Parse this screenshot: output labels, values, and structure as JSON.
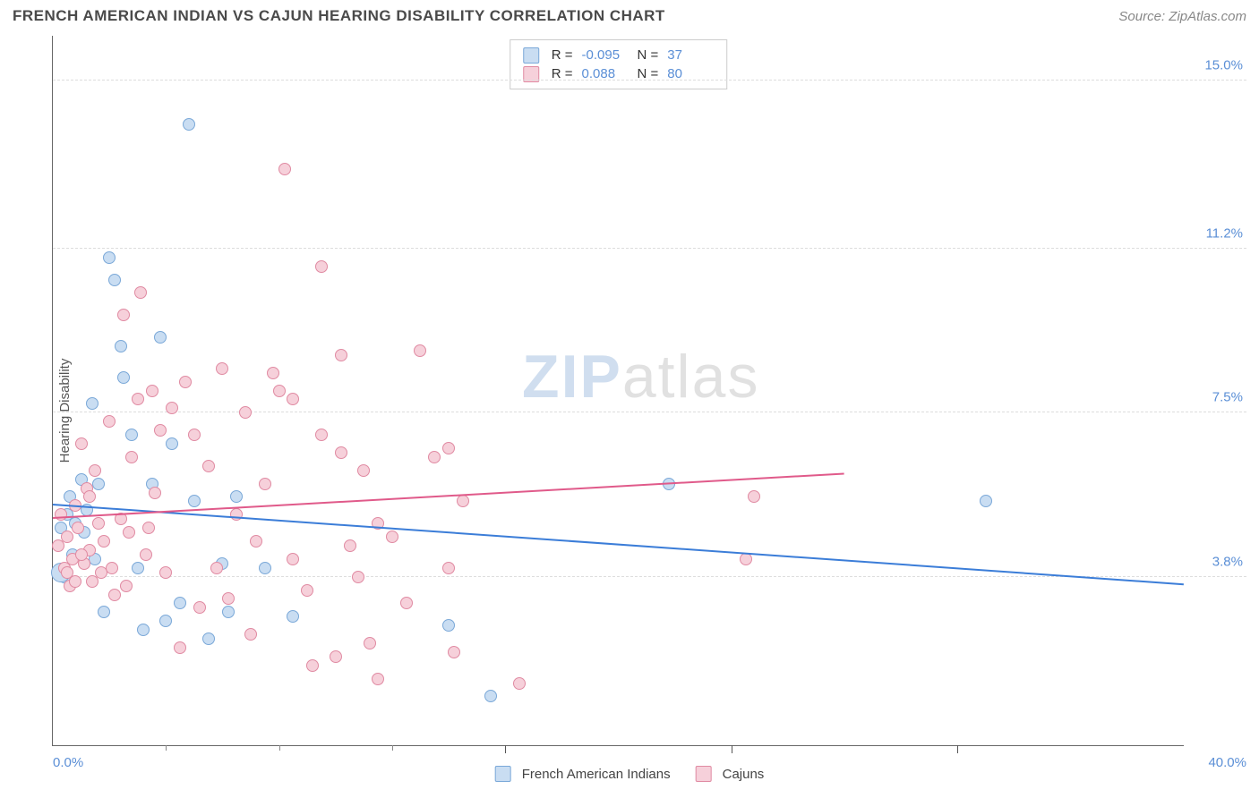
{
  "title": "FRENCH AMERICAN INDIAN VS CAJUN HEARING DISABILITY CORRELATION CHART",
  "source_label": "Source:",
  "source_name": "ZipAtlas.com",
  "y_axis_label": "Hearing Disability",
  "watermark_zip": "ZIP",
  "watermark_atlas": "atlas",
  "chart": {
    "type": "scatter-with-trend",
    "background_color": "#ffffff",
    "grid_color": "#dddddd",
    "axis_color": "#666666",
    "xlim": [
      0,
      40
    ],
    "ylim": [
      0,
      16
    ],
    "x_ticks_minor": [
      4,
      8,
      12
    ],
    "x_ticks_major": [
      16,
      24,
      32
    ],
    "x_start_label": "0.0%",
    "x_end_label": "40.0%",
    "y_gridlines": [
      {
        "value": 3.8,
        "label": "3.8%"
      },
      {
        "value": 7.5,
        "label": "7.5%"
      },
      {
        "value": 11.2,
        "label": "11.2%"
      },
      {
        "value": 15.0,
        "label": "15.0%"
      }
    ],
    "series": [
      {
        "key": "fai",
        "name": "French American Indians",
        "fill": "#c9ddf2",
        "stroke": "#7aa8d8",
        "trend_color": "#3b7dd8",
        "R": "-0.095",
        "N": "37",
        "trend": {
          "x1": 0,
          "y1": 5.4,
          "x2": 40,
          "y2": 3.6,
          "dash_from_x": 40
        },
        "points": [
          [
            0.3,
            4.9
          ],
          [
            0.4,
            3.8
          ],
          [
            0.5,
            5.2
          ],
          [
            0.6,
            5.6
          ],
          [
            0.7,
            4.3
          ],
          [
            0.8,
            5.0
          ],
          [
            1.0,
            6.0
          ],
          [
            1.1,
            4.8
          ],
          [
            1.2,
            5.3
          ],
          [
            1.4,
            7.7
          ],
          [
            1.5,
            4.2
          ],
          [
            1.6,
            5.9
          ],
          [
            1.8,
            3.0
          ],
          [
            2.0,
            11.0
          ],
          [
            2.2,
            10.5
          ],
          [
            2.4,
            9.0
          ],
          [
            2.5,
            8.3
          ],
          [
            2.8,
            7.0
          ],
          [
            3.0,
            4.0
          ],
          [
            3.2,
            2.6
          ],
          [
            3.5,
            5.9
          ],
          [
            3.8,
            9.2
          ],
          [
            4.0,
            2.8
          ],
          [
            4.2,
            6.8
          ],
          [
            4.5,
            3.2
          ],
          [
            4.8,
            14.0
          ],
          [
            5.0,
            5.5
          ],
          [
            5.5,
            2.4
          ],
          [
            6.0,
            4.1
          ],
          [
            6.2,
            3.0
          ],
          [
            6.5,
            5.6
          ],
          [
            7.5,
            4.0
          ],
          [
            8.5,
            2.9
          ],
          [
            14.0,
            2.7
          ],
          [
            15.5,
            1.1
          ],
          [
            21.8,
            5.9
          ],
          [
            33.0,
            5.5
          ]
        ],
        "large_point": [
          0.3,
          3.9
        ]
      },
      {
        "key": "cajun",
        "name": "Cajuns",
        "fill": "#f6d0da",
        "stroke": "#e08aa2",
        "trend_color": "#e05a8a",
        "R": "0.088",
        "N": "80",
        "trend": {
          "x1": 0,
          "y1": 5.1,
          "x2": 28,
          "y2": 6.1,
          "dash_from_x": 28,
          "dash_to_x": 40,
          "dash_to_y": 6.5
        },
        "points": [
          [
            0.2,
            4.5
          ],
          [
            0.3,
            5.2
          ],
          [
            0.4,
            4.0
          ],
          [
            0.5,
            4.7
          ],
          [
            0.6,
            3.6
          ],
          [
            0.7,
            4.2
          ],
          [
            0.8,
            5.4
          ],
          [
            0.9,
            4.9
          ],
          [
            1.0,
            6.8
          ],
          [
            1.1,
            4.1
          ],
          [
            1.2,
            5.8
          ],
          [
            1.3,
            4.4
          ],
          [
            1.4,
            3.7
          ],
          [
            1.5,
            6.2
          ],
          [
            1.6,
            5.0
          ],
          [
            1.8,
            4.6
          ],
          [
            2.0,
            7.3
          ],
          [
            2.2,
            3.4
          ],
          [
            2.4,
            5.1
          ],
          [
            2.5,
            9.7
          ],
          [
            2.7,
            4.8
          ],
          [
            2.8,
            6.5
          ],
          [
            3.0,
            7.8
          ],
          [
            3.1,
            10.2
          ],
          [
            3.3,
            4.3
          ],
          [
            3.5,
            8.0
          ],
          [
            3.6,
            5.7
          ],
          [
            3.8,
            7.1
          ],
          [
            4.0,
            3.9
          ],
          [
            4.2,
            7.6
          ],
          [
            4.5,
            2.2
          ],
          [
            4.7,
            8.2
          ],
          [
            5.0,
            7.0
          ],
          [
            5.2,
            3.1
          ],
          [
            5.5,
            6.3
          ],
          [
            5.8,
            4.0
          ],
          [
            6.0,
            8.5
          ],
          [
            6.2,
            3.3
          ],
          [
            6.5,
            5.2
          ],
          [
            6.8,
            7.5
          ],
          [
            7.0,
            2.5
          ],
          [
            7.2,
            4.6
          ],
          [
            7.5,
            5.9
          ],
          [
            7.8,
            8.4
          ],
          [
            8.0,
            8.0
          ],
          [
            8.2,
            13.0
          ],
          [
            8.5,
            4.2
          ],
          [
            8.5,
            7.8
          ],
          [
            9.0,
            3.5
          ],
          [
            9.2,
            1.8
          ],
          [
            9.5,
            7.0
          ],
          [
            9.5,
            10.8
          ],
          [
            10.0,
            2.0
          ],
          [
            10.2,
            6.6
          ],
          [
            10.2,
            8.8
          ],
          [
            10.5,
            4.5
          ],
          [
            10.8,
            3.8
          ],
          [
            11.0,
            6.2
          ],
          [
            11.2,
            2.3
          ],
          [
            11.5,
            1.5
          ],
          [
            11.5,
            5.0
          ],
          [
            12.0,
            4.7
          ],
          [
            12.5,
            3.2
          ],
          [
            13.0,
            8.9
          ],
          [
            13.5,
            6.5
          ],
          [
            14.0,
            4.0
          ],
          [
            14.0,
            6.7
          ],
          [
            14.2,
            2.1
          ],
          [
            14.5,
            5.5
          ],
          [
            16.5,
            1.4
          ],
          [
            24.5,
            4.2
          ],
          [
            24.8,
            5.6
          ],
          [
            0.5,
            3.9
          ],
          [
            0.8,
            3.7
          ],
          [
            1.0,
            4.3
          ],
          [
            1.3,
            5.6
          ],
          [
            1.7,
            3.9
          ],
          [
            2.1,
            4.0
          ],
          [
            2.6,
            3.6
          ],
          [
            3.4,
            4.9
          ]
        ]
      }
    ]
  },
  "stats_box": {
    "rows": [
      {
        "series_key": "fai",
        "r_label": "R =",
        "n_label": "N ="
      },
      {
        "series_key": "cajun",
        "r_label": "R =",
        "n_label": "N ="
      }
    ]
  },
  "bottom_legend": {
    "items": [
      {
        "series_key": "fai"
      },
      {
        "series_key": "cajun"
      }
    ]
  }
}
